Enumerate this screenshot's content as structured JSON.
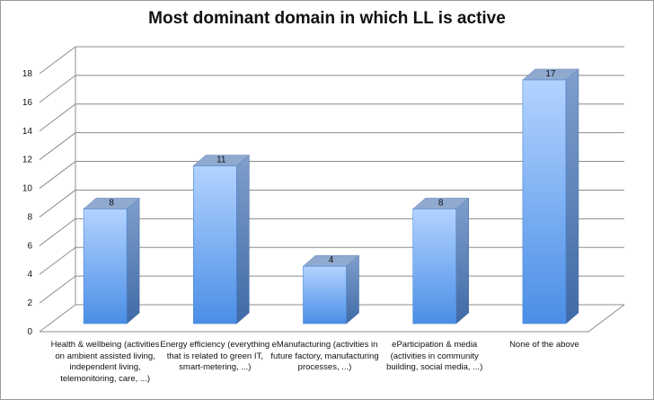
{
  "chart_data": {
    "type": "bar",
    "title": "Most dominant domain in which LL is active",
    "categories": [
      "Health & wellbeing (activities on ambient assisted living, independent living, telemonitoring, care, ...)",
      "Energy efficiency (everything that is related to green IT, smart-metering, ...)",
      "eManufacturing (activities in future factory, manufacturing processes, ...)",
      "eParticipation & media (activities in community building, social media, ...)",
      "None of the above"
    ],
    "values": [
      8,
      11,
      4,
      8,
      17
    ],
    "data_labels": [
      "8",
      "11",
      "4",
      "8",
      "17"
    ],
    "yticks": [
      "0",
      "2",
      "4",
      "6",
      "8",
      "10",
      "12",
      "14",
      "16",
      "18"
    ],
    "ylim": [
      0,
      18
    ],
    "xlabel": "",
    "ylabel": "",
    "grid": true,
    "legend": "none",
    "bar_color": "#6fa8ef",
    "bar_top_color": "#8fa9cf",
    "bar_side_color": "#5a7fb3"
  }
}
